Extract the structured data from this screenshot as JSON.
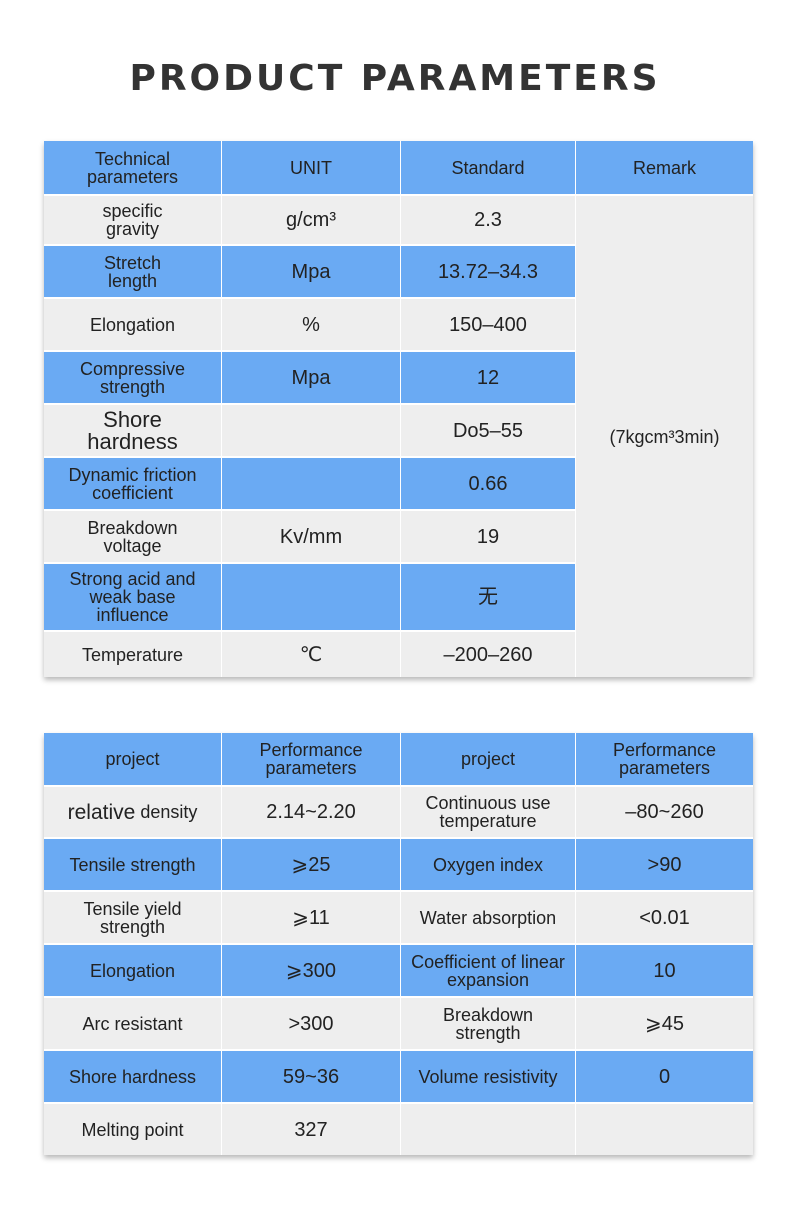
{
  "title": "PRODUCT PARAMETERS",
  "colors": {
    "header_blue": "#6aaaf3",
    "row_gray": "#eeeeee"
  },
  "table1": {
    "headers": [
      "Technical parameters",
      "UNIT",
      "Standard",
      "Remark"
    ],
    "rows": [
      {
        "param": "specific gravity",
        "unit": "g/cm³",
        "standard": "2.3"
      },
      {
        "param": "Stretch length",
        "unit": "Mpa",
        "standard": "13.72–34.3"
      },
      {
        "param": "Elongation",
        "unit": "%",
        "standard": "150–400"
      },
      {
        "param": "Compressive strength",
        "unit": "Mpa",
        "standard": "12"
      },
      {
        "param": "Shore hardness",
        "unit": "",
        "standard": "Do5–55"
      },
      {
        "param": "Dynamic friction coefficient",
        "unit": "",
        "standard": "0.66"
      },
      {
        "param": "Breakdown voltage",
        "unit": "Kv/mm",
        "standard": "19"
      },
      {
        "param": "Strong acid and weak base influence",
        "unit": "",
        "standard": "无"
      },
      {
        "param": "Temperature",
        "unit": "℃",
        "standard": "–200–260"
      }
    ],
    "remark": "(7kgcm³3min)"
  },
  "table2": {
    "headers": [
      "project",
      "Performance parameters",
      "project",
      "Performance parameters"
    ],
    "rows": [
      {
        "project1_big": "relative",
        "project1_small": "density",
        "value1": "2.14~2.20",
        "project2": "Continuous use temperature",
        "value2": "–80~260"
      },
      {
        "project1": "Tensile strength",
        "value1": "⩾25",
        "project2": "Oxygen index",
        "value2": ">90"
      },
      {
        "project1": "Tensile yield strength",
        "value1": "⩾11",
        "project2": "Water absorption",
        "value2": "<0.01"
      },
      {
        "project1": "Elongation",
        "value1": "⩾300",
        "project2": "Coefficient of linear expansion",
        "value2": "10"
      },
      {
        "project1": "Arc resistant",
        "value1": ">300",
        "project2": "Breakdown strength",
        "value2": "⩾45"
      },
      {
        "project1": "Shore hardness",
        "value1": "59~36",
        "project2": "Volume resistivity",
        "value2": "0"
      },
      {
        "project1": "Melting point",
        "value1": "327",
        "project2": "",
        "value2": ""
      }
    ]
  }
}
